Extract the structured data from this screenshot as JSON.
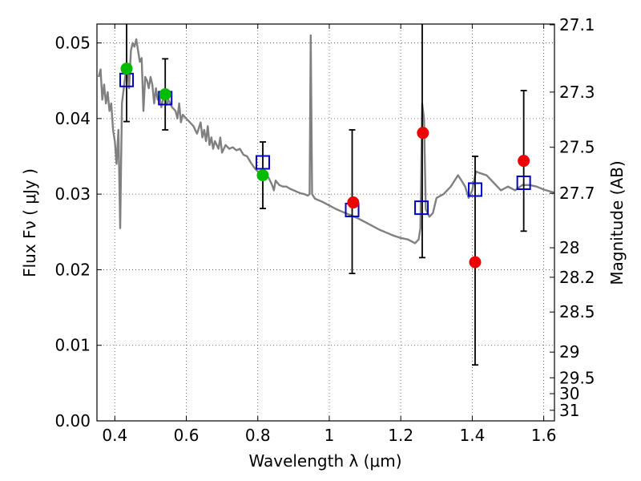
{
  "chart_data": {
    "type": "scatter",
    "xlabel": "Wavelength  λ (μm)",
    "ylabel": "Flux  Fν  ( μJy )",
    "y2label": "Magnitude (AB)",
    "xlim": [
      0.35,
      1.63
    ],
    "ylim": [
      0.0,
      0.0525
    ],
    "grid": true,
    "x_ticks": [
      0.4,
      0.6,
      0.8,
      1.0,
      1.2,
      1.4,
      1.6
    ],
    "x_tick_labels": [
      "0.4",
      "0.6",
      "0.8",
      "1",
      "1.2",
      "1.4",
      "1.6"
    ],
    "y_ticks": [
      0.0,
      0.01,
      0.02,
      0.03,
      0.04,
      0.05
    ],
    "y_tick_labels": [
      "0.00",
      "0.01",
      "0.02",
      "0.03",
      "0.04",
      "0.05"
    ],
    "mag_ticks": [
      {
        "label": "27.1",
        "flux": 0.0524
      },
      {
        "label": "27.3",
        "flux": 0.0435
      },
      {
        "label": "27.5",
        "flux": 0.0362
      },
      {
        "label": "27.7",
        "flux": 0.0301
      },
      {
        "label": "28",
        "flux": 0.0229
      },
      {
        "label": "28.2",
        "flux": 0.019
      },
      {
        "label": "28.5",
        "flux": 0.0144
      },
      {
        "label": "29",
        "flux": 0.0091
      },
      {
        "label": "29.5",
        "flux": 0.0057
      },
      {
        "label": "30",
        "flux": 0.0036
      },
      {
        "label": "31",
        "flux": 0.0014
      }
    ],
    "colors": {
      "model": "#808080",
      "model_points": "#0000cc",
      "green_points": "#00bb00",
      "red_points": "#ee0000",
      "errorbar": "#000000"
    },
    "model_spectrum": [
      [
        0.355,
        0.0455
      ],
      [
        0.36,
        0.0465
      ],
      [
        0.365,
        0.0425
      ],
      [
        0.37,
        0.0445
      ],
      [
        0.375,
        0.042
      ],
      [
        0.38,
        0.0435
      ],
      [
        0.385,
        0.041
      ],
      [
        0.39,
        0.042
      ],
      [
        0.395,
        0.0385
      ],
      [
        0.4,
        0.037
      ],
      [
        0.405,
        0.034
      ],
      [
        0.41,
        0.0385
      ],
      [
        0.415,
        0.0255
      ],
      [
        0.42,
        0.042
      ],
      [
        0.425,
        0.044
      ],
      [
        0.43,
        0.046
      ],
      [
        0.435,
        0.047
      ],
      [
        0.44,
        0.044
      ],
      [
        0.445,
        0.049
      ],
      [
        0.45,
        0.05
      ],
      [
        0.455,
        0.0495
      ],
      [
        0.46,
        0.0505
      ],
      [
        0.465,
        0.049
      ],
      [
        0.47,
        0.0475
      ],
      [
        0.475,
        0.048
      ],
      [
        0.48,
        0.041
      ],
      [
        0.485,
        0.0455
      ],
      [
        0.49,
        0.045
      ],
      [
        0.495,
        0.044
      ],
      [
        0.5,
        0.0455
      ],
      [
        0.505,
        0.0445
      ],
      [
        0.51,
        0.042
      ],
      [
        0.515,
        0.044
      ],
      [
        0.52,
        0.0425
      ],
      [
        0.525,
        0.043
      ],
      [
        0.53,
        0.0415
      ],
      [
        0.535,
        0.0425
      ],
      [
        0.54,
        0.043
      ],
      [
        0.545,
        0.0418
      ],
      [
        0.55,
        0.0425
      ],
      [
        0.56,
        0.0415
      ],
      [
        0.57,
        0.041
      ],
      [
        0.575,
        0.04
      ],
      [
        0.58,
        0.042
      ],
      [
        0.585,
        0.0395
      ],
      [
        0.59,
        0.0405
      ],
      [
        0.6,
        0.04
      ],
      [
        0.61,
        0.0395
      ],
      [
        0.62,
        0.039
      ],
      [
        0.63,
        0.038
      ],
      [
        0.64,
        0.0395
      ],
      [
        0.645,
        0.0375
      ],
      [
        0.65,
        0.0385
      ],
      [
        0.655,
        0.037
      ],
      [
        0.66,
        0.039
      ],
      [
        0.665,
        0.0365
      ],
      [
        0.67,
        0.0375
      ],
      [
        0.675,
        0.036
      ],
      [
        0.68,
        0.037
      ],
      [
        0.69,
        0.036
      ],
      [
        0.695,
        0.0375
      ],
      [
        0.7,
        0.0355
      ],
      [
        0.71,
        0.0365
      ],
      [
        0.72,
        0.036
      ],
      [
        0.73,
        0.0362
      ],
      [
        0.74,
        0.0358
      ],
      [
        0.75,
        0.036
      ],
      [
        0.76,
        0.0352
      ],
      [
        0.77,
        0.035
      ],
      [
        0.78,
        0.0342
      ],
      [
        0.79,
        0.0335
      ],
      [
        0.8,
        0.033
      ],
      [
        0.81,
        0.0328
      ],
      [
        0.82,
        0.0325
      ],
      [
        0.83,
        0.0322
      ],
      [
        0.84,
        0.0312
      ],
      [
        0.845,
        0.0305
      ],
      [
        0.85,
        0.0318
      ],
      [
        0.86,
        0.0312
      ],
      [
        0.87,
        0.031
      ],
      [
        0.88,
        0.031
      ],
      [
        0.89,
        0.0307
      ],
      [
        0.9,
        0.0305
      ],
      [
        0.91,
        0.0303
      ],
      [
        0.92,
        0.0301
      ],
      [
        0.93,
        0.03
      ],
      [
        0.94,
        0.0298
      ],
      [
        0.945,
        0.03
      ],
      [
        0.948,
        0.051
      ],
      [
        0.952,
        0.03
      ],
      [
        0.96,
        0.0294
      ],
      [
        0.98,
        0.029
      ],
      [
        1.0,
        0.0285
      ],
      [
        1.02,
        0.028
      ],
      [
        1.04,
        0.0276
      ],
      [
        1.06,
        0.0272
      ],
      [
        1.08,
        0.0268
      ],
      [
        1.1,
        0.0263
      ],
      [
        1.12,
        0.0258
      ],
      [
        1.14,
        0.0253
      ],
      [
        1.16,
        0.0249
      ],
      [
        1.18,
        0.0245
      ],
      [
        1.2,
        0.0242
      ],
      [
        1.22,
        0.024
      ],
      [
        1.24,
        0.0235
      ],
      [
        1.25,
        0.024
      ],
      [
        1.255,
        0.0255
      ],
      [
        1.26,
        0.042
      ],
      [
        1.265,
        0.04
      ],
      [
        1.27,
        0.028
      ],
      [
        1.28,
        0.027
      ],
      [
        1.29,
        0.0275
      ],
      [
        1.3,
        0.0295
      ],
      [
        1.32,
        0.03
      ],
      [
        1.34,
        0.031
      ],
      [
        1.36,
        0.0325
      ],
      [
        1.37,
        0.0318
      ],
      [
        1.38,
        0.031
      ],
      [
        1.39,
        0.0295
      ],
      [
        1.4,
        0.0305
      ],
      [
        1.41,
        0.033
      ],
      [
        1.42,
        0.0328
      ],
      [
        1.44,
        0.0325
      ],
      [
        1.46,
        0.0315
      ],
      [
        1.48,
        0.0305
      ],
      [
        1.5,
        0.031
      ],
      [
        1.52,
        0.0305
      ],
      [
        1.54,
        0.0312
      ],
      [
        1.56,
        0.0312
      ],
      [
        1.58,
        0.031
      ],
      [
        1.6,
        0.0306
      ],
      [
        1.63,
        0.0302
      ]
    ],
    "model_points": [
      {
        "x": 0.433,
        "y": 0.0451
      },
      {
        "x": 0.541,
        "y": 0.0427
      },
      {
        "x": 0.814,
        "y": 0.0342
      },
      {
        "x": 1.064,
        "y": 0.0279
      },
      {
        "x": 1.258,
        "y": 0.0282
      },
      {
        "x": 1.408,
        "y": 0.0306
      },
      {
        "x": 1.544,
        "y": 0.0315
      }
    ],
    "green_points": [
      {
        "x": 0.433,
        "y": 0.0466
      },
      {
        "x": 0.541,
        "y": 0.0432
      },
      {
        "x": 0.814,
        "y": 0.0325
      }
    ],
    "red_points": [
      {
        "x": 1.067,
        "y": 0.0289
      },
      {
        "x": 1.262,
        "y": 0.0381
      },
      {
        "x": 1.408,
        "y": 0.021
      },
      {
        "x": 1.544,
        "y": 0.0344
      }
    ],
    "error_bars": [
      {
        "x": 0.433,
        "ylow": 0.0396,
        "yhigh": 0.0525
      },
      {
        "x": 0.541,
        "ylow": 0.0385,
        "yhigh": 0.0479
      },
      {
        "x": 0.814,
        "ylow": 0.0281,
        "yhigh": 0.0369
      },
      {
        "x": 1.064,
        "ylow": 0.0195,
        "yhigh": 0.0385
      },
      {
        "x": 1.26,
        "ylow": 0.0216,
        "yhigh": 0.0525
      },
      {
        "x": 1.408,
        "ylow": 0.0074,
        "yhigh": 0.035
      },
      {
        "x": 1.544,
        "ylow": 0.0251,
        "yhigh": 0.0437
      }
    ]
  }
}
